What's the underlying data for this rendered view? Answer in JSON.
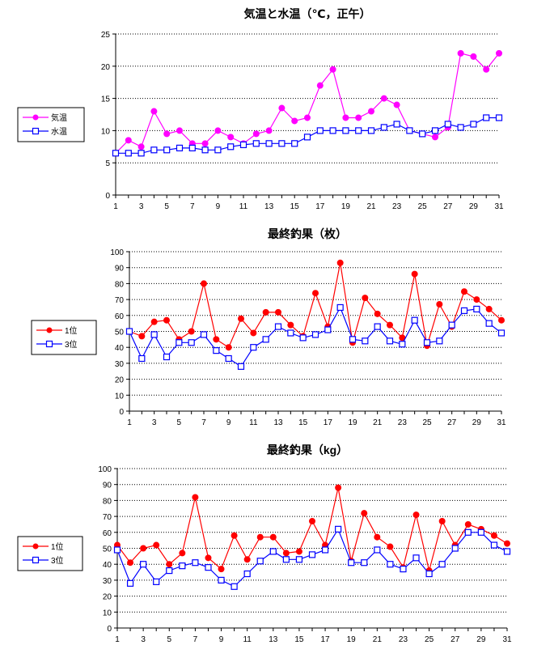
{
  "chart_data": [
    {
      "type": "line",
      "title": "気温と水温（℃，正午）",
      "xlabel": "",
      "ylabel": "",
      "x": [
        1,
        2,
        3,
        4,
        5,
        6,
        7,
        8,
        9,
        10,
        11,
        12,
        13,
        14,
        15,
        16,
        17,
        18,
        19,
        20,
        21,
        22,
        23,
        24,
        25,
        26,
        27,
        28,
        29,
        30,
        31
      ],
      "xticks": [
        1,
        3,
        5,
        7,
        9,
        11,
        13,
        15,
        17,
        19,
        21,
        23,
        25,
        27,
        29,
        31
      ],
      "ylim": [
        0,
        25
      ],
      "ystep": 5,
      "grid": true,
      "legend": "left",
      "series": [
        {
          "name": "気温",
          "color": "#ff00ff",
          "marker": "circle",
          "values": [
            6.5,
            8.5,
            7.5,
            13,
            9.5,
            10,
            8,
            8,
            10,
            9,
            8,
            9.5,
            10,
            13.5,
            11.5,
            12,
            17,
            19.5,
            12,
            12,
            13,
            15,
            14,
            10,
            9.5,
            9,
            10.5,
            22,
            21.5,
            19.5,
            22
          ]
        },
        {
          "name": "水温",
          "color": "#0000ff",
          "marker": "square",
          "values": [
            6.5,
            6.5,
            6.5,
            7,
            7,
            7.3,
            7.3,
            7,
            7,
            7.5,
            7.8,
            8,
            8,
            8,
            8,
            9,
            10,
            10,
            10,
            10,
            10,
            10.5,
            11,
            10,
            9.5,
            10,
            11,
            10.5,
            11,
            12,
            12
          ]
        }
      ]
    },
    {
      "type": "line",
      "title": "最終釣果（枚）",
      "xlabel": "",
      "ylabel": "",
      "x": [
        1,
        2,
        3,
        4,
        5,
        6,
        7,
        8,
        9,
        10,
        11,
        12,
        13,
        14,
        15,
        16,
        17,
        18,
        19,
        20,
        21,
        22,
        23,
        24,
        25,
        26,
        27,
        28,
        29,
        30,
        31
      ],
      "xticks": [
        1,
        3,
        5,
        7,
        9,
        11,
        13,
        15,
        17,
        19,
        21,
        23,
        25,
        27,
        29,
        31
      ],
      "ylim": [
        0,
        100
      ],
      "ystep": 10,
      "grid": true,
      "legend": "left",
      "series": [
        {
          "name": "1位",
          "color": "#ff0000",
          "marker": "circle",
          "values": [
            50,
            47,
            56,
            57,
            45,
            50,
            80,
            45,
            40,
            58,
            49,
            62,
            62,
            54,
            47,
            74,
            53,
            93,
            43,
            71,
            61,
            54,
            46,
            86,
            41,
            67,
            53,
            75,
            70,
            64,
            57
          ]
        },
        {
          "name": "3位",
          "color": "#0000ff",
          "marker": "square",
          "values": [
            50,
            33,
            48,
            34,
            43,
            43,
            48,
            38,
            33,
            28,
            40,
            45,
            53,
            49,
            46,
            48,
            51,
            65,
            45,
            44,
            53,
            44,
            42,
            57,
            43,
            44,
            54,
            63,
            64,
            55,
            49
          ]
        }
      ]
    },
    {
      "type": "line",
      "title": "最終釣果（kg）",
      "xlabel": "",
      "ylabel": "",
      "x": [
        1,
        2,
        3,
        4,
        5,
        6,
        7,
        8,
        9,
        10,
        11,
        12,
        13,
        14,
        15,
        16,
        17,
        18,
        19,
        20,
        21,
        22,
        23,
        24,
        25,
        26,
        27,
        28,
        29,
        30,
        31
      ],
      "xticks": [
        1,
        3,
        5,
        7,
        9,
        11,
        13,
        15,
        17,
        19,
        21,
        23,
        25,
        27,
        29,
        31
      ],
      "ylim": [
        0,
        100
      ],
      "ystep": 10,
      "grid": true,
      "legend": "left",
      "series": [
        {
          "name": "1位",
          "color": "#ff0000",
          "marker": "circle",
          "values": [
            52,
            41,
            50,
            52,
            40,
            47,
            82,
            44,
            37,
            58,
            43,
            57,
            57,
            47,
            48,
            67,
            52,
            88,
            42,
            72,
            57,
            51,
            38,
            71,
            36,
            67,
            52,
            65,
            62,
            58,
            53
          ]
        },
        {
          "name": "3位",
          "color": "#0000ff",
          "marker": "square",
          "values": [
            49,
            28,
            40,
            29,
            36,
            39,
            41,
            38,
            30,
            26,
            34,
            42,
            48,
            43,
            43,
            46,
            49,
            62,
            41,
            41,
            49,
            40,
            37,
            44,
            34,
            40,
            50,
            60,
            60,
            52,
            48
          ]
        }
      ]
    }
  ]
}
